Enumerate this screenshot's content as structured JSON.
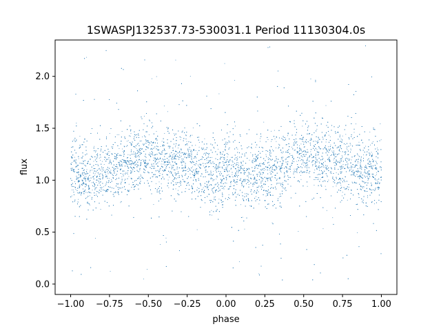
{
  "chart_data": {
    "type": "scatter",
    "title": "1SWASPJ132537.73-530031.1 Period 11130304.0s",
    "xlabel": "phase",
    "ylabel": "flux",
    "xlim": [
      -1.1,
      1.1
    ],
    "ylim": [
      -0.1,
      2.35
    ],
    "xticks": [
      -1.0,
      -0.75,
      -0.5,
      -0.25,
      0.0,
      0.25,
      0.5,
      0.75,
      1.0
    ],
    "xtick_labels": [
      "−1.00",
      "−0.75",
      "−0.50",
      "−0.25",
      "0.00",
      "0.25",
      "0.50",
      "0.75",
      "1.00"
    ],
    "yticks": [
      0.0,
      0.5,
      1.0,
      1.5,
      2.0
    ],
    "ytick_labels": [
      "0.0",
      "0.5",
      "1.0",
      "1.5",
      "2.0"
    ],
    "grid": false,
    "point_color": "#1f77b4",
    "trend": [
      {
        "x": -1.0,
        "y": 1.08
      },
      {
        "x": -0.9,
        "y": 1.04
      },
      {
        "x": -0.8,
        "y": 1.06
      },
      {
        "x": -0.7,
        "y": 1.12
      },
      {
        "x": -0.6,
        "y": 1.2
      },
      {
        "x": -0.5,
        "y": 1.23
      },
      {
        "x": -0.4,
        "y": 1.18
      },
      {
        "x": -0.3,
        "y": 1.2
      },
      {
        "x": -0.2,
        "y": 1.12
      },
      {
        "x": -0.1,
        "y": 1.05
      },
      {
        "x": 0.0,
        "y": 1.08
      },
      {
        "x": 0.1,
        "y": 1.04
      },
      {
        "x": 0.2,
        "y": 1.06
      },
      {
        "x": 0.3,
        "y": 1.12
      },
      {
        "x": 0.4,
        "y": 1.2
      },
      {
        "x": 0.5,
        "y": 1.23
      },
      {
        "x": 0.6,
        "y": 1.18
      },
      {
        "x": 0.7,
        "y": 1.2
      },
      {
        "x": 0.8,
        "y": 1.12
      },
      {
        "x": 0.9,
        "y": 1.05
      },
      {
        "x": 1.0,
        "y": 1.08
      }
    ],
    "scatter_spread": 0.16,
    "point_count": 9000,
    "y_range_of_points": [
      0.0,
      2.3
    ]
  }
}
